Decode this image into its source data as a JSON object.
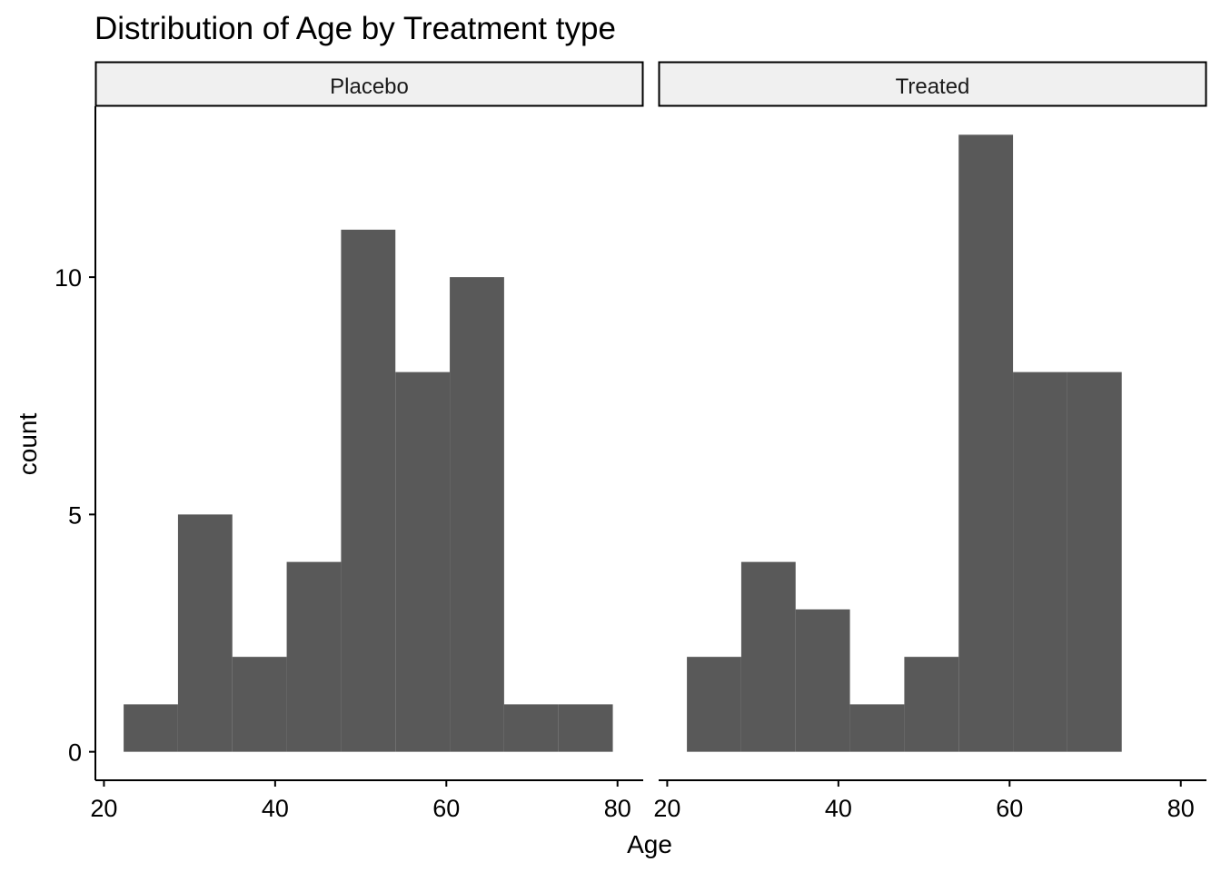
{
  "chart_data": {
    "type": "bar",
    "title": "Distribution of Age by Treatment type",
    "xlabel": "Age",
    "ylabel": "count",
    "xlim": [
      19,
      83
    ],
    "ylim": [
      -0.6,
      13.6
    ],
    "xticks": [
      20,
      40,
      60,
      80
    ],
    "yticks": [
      0,
      5,
      10
    ],
    "grid": false,
    "bin_width": 6.35,
    "facets": [
      {
        "name": "Placebo",
        "bins": [
          {
            "x0": 22.3,
            "x1": 28.65,
            "count": 1
          },
          {
            "x0": 28.65,
            "x1": 35.0,
            "count": 5
          },
          {
            "x0": 35.0,
            "x1": 41.35,
            "count": 2
          },
          {
            "x0": 41.35,
            "x1": 47.7,
            "count": 4
          },
          {
            "x0": 47.7,
            "x1": 54.05,
            "count": 11
          },
          {
            "x0": 54.05,
            "x1": 60.4,
            "count": 8
          },
          {
            "x0": 60.4,
            "x1": 66.75,
            "count": 10
          },
          {
            "x0": 66.75,
            "x1": 73.1,
            "count": 1
          },
          {
            "x0": 73.1,
            "x1": 79.45,
            "count": 1
          }
        ]
      },
      {
        "name": "Treated",
        "bins": [
          {
            "x0": 22.3,
            "x1": 28.65,
            "count": 2
          },
          {
            "x0": 28.65,
            "x1": 35.0,
            "count": 4
          },
          {
            "x0": 35.0,
            "x1": 41.35,
            "count": 3
          },
          {
            "x0": 41.35,
            "x1": 47.7,
            "count": 1
          },
          {
            "x0": 47.7,
            "x1": 54.05,
            "count": 2
          },
          {
            "x0": 54.05,
            "x1": 60.4,
            "count": 13
          },
          {
            "x0": 60.4,
            "x1": 66.75,
            "count": 8
          },
          {
            "x0": 66.75,
            "x1": 73.1,
            "count": 8
          }
        ]
      }
    ],
    "colors": {
      "bar": "#595959",
      "strip_fill": "#f0f0f0",
      "strip_border": "#000000",
      "axis": "#000000"
    }
  }
}
